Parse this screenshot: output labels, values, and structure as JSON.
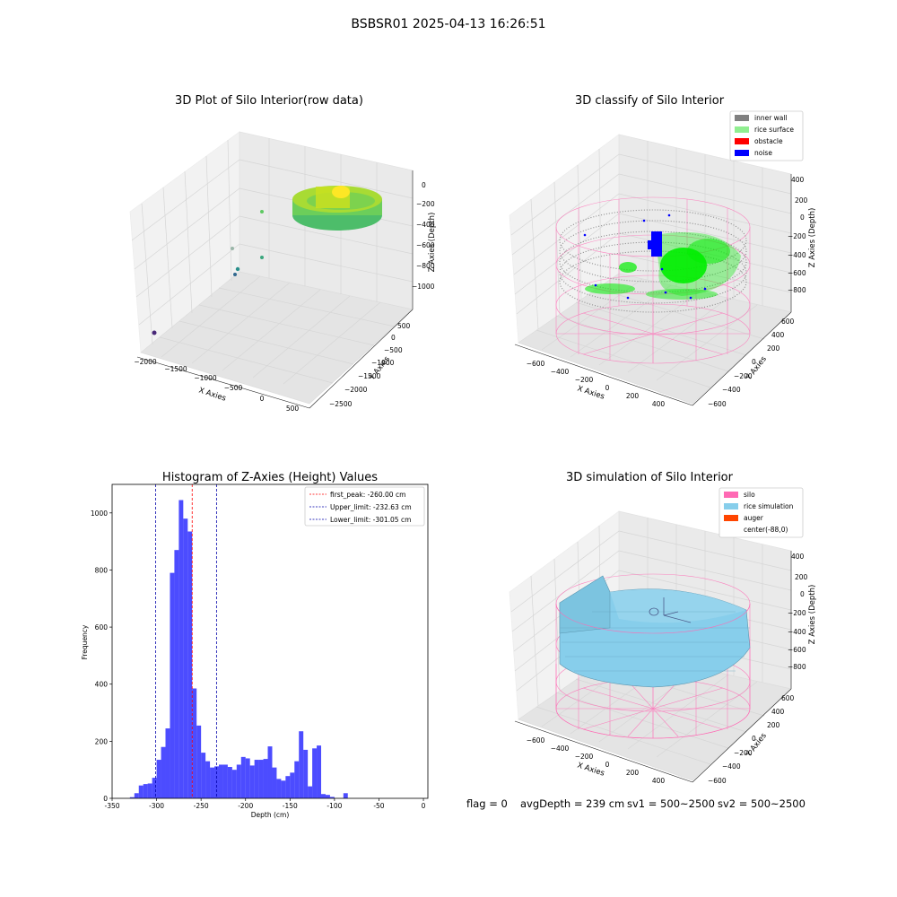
{
  "suptitle": "BSBSR01 2025-04-13 16:26:51",
  "footer": {
    "flag": "flag = 0",
    "avg": "avgDepth = 239 cm",
    "sv1": "sv1 = 500~2500",
    "sv2": "sv2 = 500~2500"
  },
  "chart_data": [
    {
      "type": "scatter",
      "title": "3D Plot of Silo Interior(row data)",
      "xlabel": "X Axies",
      "ylabel": "Y Axies",
      "zlabel": "Z Axies (Depth)",
      "x_ticks": [
        "−2000",
        "−1500",
        "−1000",
        "−500",
        "0",
        "500"
      ],
      "y_ticks": [
        "−2500",
        "−2000",
        "−1500",
        "−1000",
        "−500",
        "0",
        "500"
      ],
      "z_ticks": [
        "0",
        "−200",
        "−400",
        "−600",
        "−800",
        "−1000"
      ],
      "colormap": "viridis"
    },
    {
      "type": "scatter",
      "title": "3D classify of Silo Interior",
      "xlabel": "X Axies",
      "ylabel": "Y Axies",
      "zlabel": "Z Axies (Depth)",
      "x_ticks": [
        "−600",
        "−400",
        "−200",
        "0",
        "200",
        "400"
      ],
      "y_ticks": [
        "−600",
        "−400",
        "−200",
        "0",
        "200",
        "400",
        "600"
      ],
      "z_ticks": [
        "400",
        "200",
        "0",
        "−200",
        "−400",
        "−600",
        "−800"
      ],
      "legend": [
        {
          "label": "inner wall",
          "color": "#808080"
        },
        {
          "label": "rice surface",
          "color": "#90ee90"
        },
        {
          "label": "obstacle",
          "color": "#ff0000"
        },
        {
          "label": "noise",
          "color": "#0000ff"
        }
      ],
      "legend_position": "top-right"
    },
    {
      "type": "bar",
      "title": "Histogram of Z-Axies (Height) Values",
      "xlabel": "Depth (cm)",
      "ylabel": "Frequency",
      "xlim": [
        -350,
        5
      ],
      "ylim": [
        0,
        1100
      ],
      "x_ticks": [
        -350,
        -300,
        -250,
        -200,
        -150,
        -100,
        -50,
        0
      ],
      "y_ticks": [
        0,
        200,
        400,
        600,
        800,
        1000
      ],
      "bin_width": 5,
      "bar_color": "#0000ff",
      "bins": [
        [
          -335,
          0
        ],
        [
          -330,
          4
        ],
        [
          -325,
          18
        ],
        [
          -320,
          45
        ],
        [
          -315,
          50
        ],
        [
          -310,
          52
        ],
        [
          -305,
          72
        ],
        [
          -300,
          135
        ],
        [
          -295,
          180
        ],
        [
          -290,
          245
        ],
        [
          -285,
          790
        ],
        [
          -280,
          870
        ],
        [
          -275,
          1045
        ],
        [
          -270,
          980
        ],
        [
          -265,
          935
        ],
        [
          -260,
          385
        ],
        [
          -255,
          255
        ],
        [
          -250,
          160
        ],
        [
          -245,
          130
        ],
        [
          -240,
          108
        ],
        [
          -235,
          112
        ],
        [
          -230,
          118
        ],
        [
          -225,
          118
        ],
        [
          -220,
          110
        ],
        [
          -215,
          100
        ],
        [
          -210,
          118
        ],
        [
          -205,
          145
        ],
        [
          -200,
          140
        ],
        [
          -195,
          115
        ],
        [
          -190,
          135
        ],
        [
          -185,
          135
        ],
        [
          -180,
          138
        ],
        [
          -175,
          182
        ],
        [
          -170,
          108
        ],
        [
          -165,
          68
        ],
        [
          -160,
          62
        ],
        [
          -155,
          78
        ],
        [
          -150,
          90
        ],
        [
          -145,
          130
        ],
        [
          -140,
          235
        ],
        [
          -135,
          170
        ],
        [
          -130,
          42
        ],
        [
          -125,
          175
        ],
        [
          -120,
          185
        ],
        [
          -115,
          15
        ],
        [
          -110,
          12
        ],
        [
          -105,
          5
        ],
        [
          -100,
          0
        ],
        [
          -95,
          0
        ],
        [
          -90,
          18
        ],
        [
          -85,
          0
        ]
      ],
      "vlines": [
        {
          "x": -260.0,
          "color": "#ff0000",
          "label": "first_peak: -260.00 cm"
        },
        {
          "x": -232.63,
          "color": "#0000aa",
          "label": "Upper_limit: -232.63 cm"
        },
        {
          "x": -301.05,
          "color": "#0000aa",
          "label": "Lower_limit: -301.05 cm"
        }
      ],
      "legend_position": "top-right"
    },
    {
      "type": "other",
      "title": "3D simulation of Silo Interior",
      "xlabel": "X Axies",
      "ylabel": "Y Axies",
      "zlabel": "Z Axies (Depth)",
      "x_ticks": [
        "−600",
        "−400",
        "−200",
        "0",
        "200",
        "400"
      ],
      "y_ticks": [
        "−600",
        "−400",
        "−200",
        "0",
        "200",
        "400",
        "600"
      ],
      "z_ticks": [
        "400",
        "200",
        "0",
        "−200",
        "−400",
        "−600",
        "−800"
      ],
      "legend": [
        {
          "label": "silo",
          "color": "#ff69b4"
        },
        {
          "label": "rice simulation",
          "color": "#87ceeb"
        },
        {
          "label": "auger",
          "color": "#ff4500"
        },
        {
          "label": "center(-88,0)",
          "color": ""
        }
      ],
      "legend_position": "top-right"
    }
  ]
}
